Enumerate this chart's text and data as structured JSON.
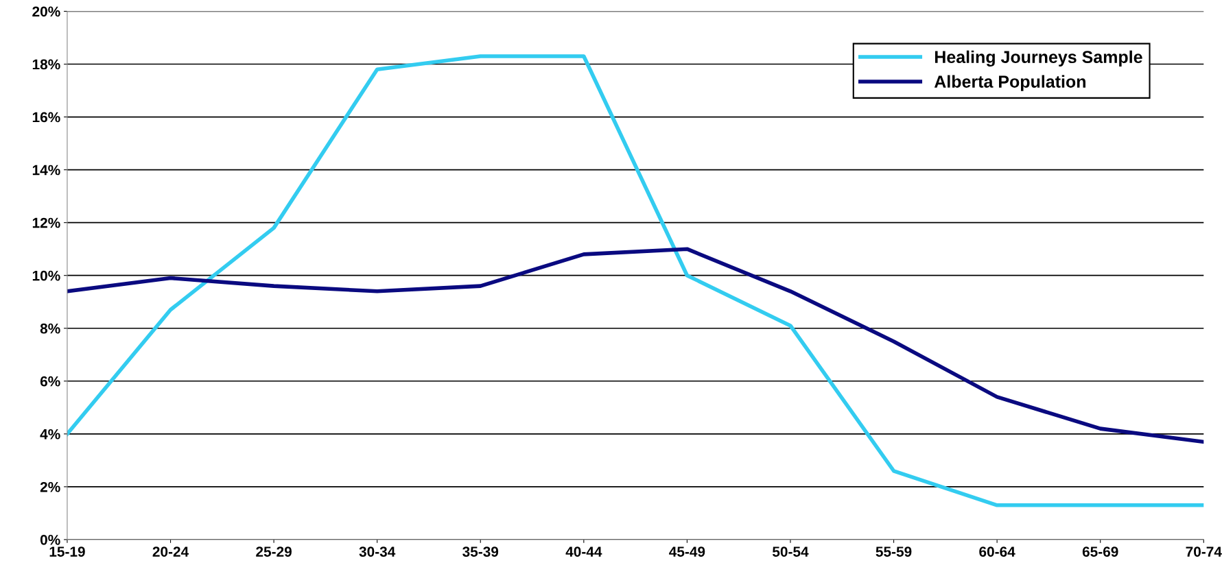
{
  "chart_data": {
    "type": "line",
    "categories": [
      "15-19",
      "20-24",
      "25-29",
      "30-34",
      "35-39",
      "40-44",
      "45-49",
      "50-54",
      "55-59",
      "60-64",
      "65-69",
      "70-74"
    ],
    "series": [
      {
        "name": "Healing Journeys Sample",
        "color": "#33ccf0",
        "values": [
          4.0,
          8.7,
          11.8,
          17.8,
          18.3,
          18.3,
          10.0,
          8.1,
          2.6,
          1.3,
          1.3,
          1.3
        ]
      },
      {
        "name": "Alberta Population",
        "color": "#0a0a80",
        "values": [
          9.4,
          9.9,
          9.6,
          9.4,
          9.6,
          10.8,
          11.0,
          9.4,
          7.5,
          5.4,
          4.2,
          3.7
        ]
      }
    ],
    "ylim": [
      0,
      20
    ],
    "yticks": [
      {
        "value": 0,
        "label": "0%"
      },
      {
        "value": 2,
        "label": "2%"
      },
      {
        "value": 4,
        "label": "4%"
      },
      {
        "value": 6,
        "label": "6%"
      },
      {
        "value": 8,
        "label": "8%"
      },
      {
        "value": 10,
        "label": "10%"
      },
      {
        "value": 12,
        "label": "12%"
      },
      {
        "value": 14,
        "label": "14%"
      },
      {
        "value": 16,
        "label": "16%"
      },
      {
        "value": 18,
        "label": "18%"
      },
      {
        "value": 20,
        "label": "20%"
      }
    ],
    "grid": "y",
    "legend": "top right",
    "marker": "none",
    "line_style": "solid"
  }
}
